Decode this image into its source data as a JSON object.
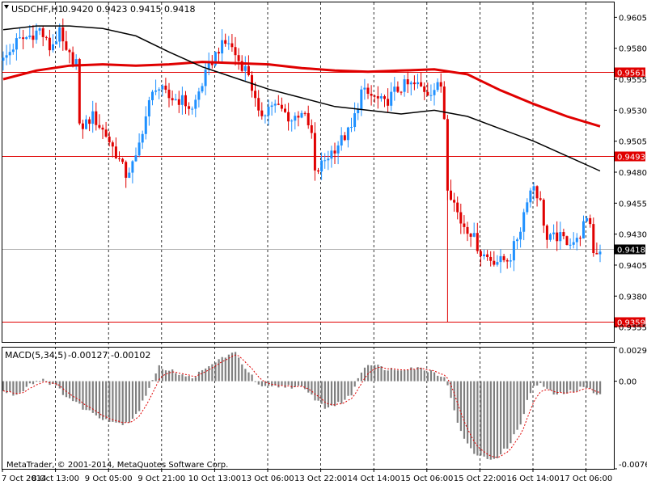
{
  "header": {
    "symbol_label": "USDCHF,H1",
    "ohlc_label": "0.9420 0.9423 0.9415 0.9418"
  },
  "macd": {
    "label": "MACD(5,34,5)",
    "values_label": "-0.00127 -0.00102",
    "scale_labels": [
      "0.00293",
      "0.00",
      "-0.00764"
    ]
  },
  "copyright": "MetaTrader, © 2001-2014, MetaQuotes Software Corp.",
  "colors": {
    "background": "#ffffff",
    "bull_candle": "#1e90ff",
    "bear_candle": "#e00000",
    "ma_fast": "#000000",
    "ma_slow": "#e00000",
    "macd_hist": "#808080",
    "macd_signal": "#e00000",
    "level_line": "#e00000",
    "bid_line": "#b0b0b0"
  },
  "chart_data": {
    "type": "candlestick",
    "symbol": "USDCHF",
    "timeframe": "H1",
    "ylim": [
      0.9343,
      0.9617
    ],
    "price_ticks": [
      0.9605,
      0.958,
      0.9555,
      0.953,
      0.9505,
      0.948,
      0.9455,
      0.943,
      0.9405,
      0.938,
      0.9355
    ],
    "x_ticks": [
      "7 Oct 2014",
      "8 Oct 13:00",
      "9 Oct 05:00",
      "9 Oct 21:00",
      "10 Oct 13:00",
      "13 Oct 06:00",
      "13 Oct 22:00",
      "14 Oct 14:00",
      "15 Oct 06:00",
      "15 Oct 22:00",
      "16 Oct 14:00",
      "17 Oct 06:00"
    ],
    "horizontal_levels": [
      {
        "label": "0.9561",
        "value": 0.9561
      },
      {
        "label": "0.9493",
        "value": 0.9493
      },
      {
        "label": "0.9359",
        "value": 0.9359
      }
    ],
    "bid": {
      "label": "0.9418",
      "value": 0.9418
    },
    "price_path": [
      [
        0,
        0.957
      ],
      [
        4,
        0.9585
      ],
      [
        8,
        0.959
      ],
      [
        11,
        0.9595
      ],
      [
        14,
        0.958
      ],
      [
        17,
        0.9592
      ],
      [
        19,
        0.9575
      ],
      [
        22,
        0.957
      ],
      [
        23,
        0.9515
      ],
      [
        27,
        0.9525
      ],
      [
        31,
        0.951
      ],
      [
        34,
        0.9495
      ],
      [
        37,
        0.9478
      ],
      [
        40,
        0.949
      ],
      [
        42,
        0.9515
      ],
      [
        44,
        0.9535
      ],
      [
        46,
        0.955
      ],
      [
        50,
        0.954
      ],
      [
        54,
        0.9538
      ],
      [
        57,
        0.953
      ],
      [
        59,
        0.9545
      ],
      [
        62,
        0.9565
      ],
      [
        65,
        0.958
      ],
      [
        68,
        0.9585
      ],
      [
        71,
        0.957
      ],
      [
        74,
        0.956
      ],
      [
        77,
        0.9525
      ],
      [
        81,
        0.9535
      ],
      [
        84,
        0.953
      ],
      [
        87,
        0.9522
      ],
      [
        90,
        0.953
      ],
      [
        93,
        0.951
      ],
      [
        94,
        0.9478
      ],
      [
        97,
        0.949
      ],
      [
        101,
        0.9503
      ],
      [
        105,
        0.9515
      ],
      [
        108,
        0.9545
      ],
      [
        112,
        0.954
      ],
      [
        115,
        0.9535
      ],
      [
        118,
        0.9545
      ],
      [
        121,
        0.955
      ],
      [
        125,
        0.955
      ],
      [
        128,
        0.9545
      ],
      [
        132,
        0.955
      ],
      [
        133,
        0.9525
      ],
      [
        134,
        0.947
      ],
      [
        138,
        0.944
      ],
      [
        141,
        0.9432
      ],
      [
        144,
        0.9415
      ],
      [
        147,
        0.941
      ],
      [
        150,
        0.9408
      ],
      [
        153,
        0.9412
      ],
      [
        156,
        0.9435
      ],
      [
        158,
        0.946
      ],
      [
        160,
        0.947
      ],
      [
        162,
        0.9455
      ],
      [
        164,
        0.9425
      ],
      [
        167,
        0.9428
      ],
      [
        170,
        0.9425
      ],
      [
        173,
        0.9424
      ],
      [
        175,
        0.9437
      ],
      [
        177,
        0.944
      ],
      [
        178,
        0.9415
      ],
      [
        180,
        0.9418
      ]
    ],
    "ma_fast": [
      [
        0,
        0.9595
      ],
      [
        10,
        0.9598
      ],
      [
        20,
        0.9598
      ],
      [
        30,
        0.9596
      ],
      [
        40,
        0.959
      ],
      [
        50,
        0.9577
      ],
      [
        60,
        0.9565
      ],
      [
        70,
        0.9556
      ],
      [
        80,
        0.9547
      ],
      [
        90,
        0.954
      ],
      [
        100,
        0.9533
      ],
      [
        110,
        0.953
      ],
      [
        120,
        0.9527
      ],
      [
        130,
        0.953
      ],
      [
        140,
        0.9525
      ],
      [
        150,
        0.9515
      ],
      [
        160,
        0.9505
      ],
      [
        170,
        0.9493
      ],
      [
        180,
        0.9481
      ]
    ],
    "ma_slow": [
      [
        0,
        0.9555
      ],
      [
        10,
        0.9562
      ],
      [
        20,
        0.9566
      ],
      [
        30,
        0.9567
      ],
      [
        40,
        0.9566
      ],
      [
        50,
        0.9567
      ],
      [
        60,
        0.9569
      ],
      [
        70,
        0.9568
      ],
      [
        80,
        0.9567
      ],
      [
        90,
        0.9564
      ],
      [
        100,
        0.9562
      ],
      [
        110,
        0.9561
      ],
      [
        120,
        0.9562
      ],
      [
        130,
        0.9563
      ],
      [
        140,
        0.9559
      ],
      [
        150,
        0.9546
      ],
      [
        160,
        0.9535
      ],
      [
        170,
        0.9525
      ],
      [
        180,
        0.9517
      ]
    ],
    "macd_ylim": [
      -0.00764,
      0.00293
    ],
    "macd_path": [
      [
        0,
        -0.0009
      ],
      [
        4,
        -0.0012
      ],
      [
        8,
        -0.0002
      ],
      [
        12,
        0.0002
      ],
      [
        15,
        -0.0003
      ],
      [
        20,
        -0.0015
      ],
      [
        25,
        -0.0025
      ],
      [
        30,
        -0.0032
      ],
      [
        35,
        -0.0037
      ],
      [
        38,
        -0.0035
      ],
      [
        41,
        -0.0025
      ],
      [
        44,
        -0.0005
      ],
      [
        47,
        0.0012
      ],
      [
        51,
        0.001
      ],
      [
        55,
        0.0003
      ],
      [
        58,
        0.0005
      ],
      [
        61,
        0.001
      ],
      [
        64,
        0.0017
      ],
      [
        67,
        0.0022
      ],
      [
        70,
        0.0024
      ],
      [
        73,
        0.0012
      ],
      [
        76,
        0.0
      ],
      [
        78,
        -0.0006
      ],
      [
        82,
        -0.0005
      ],
      [
        86,
        -0.0004
      ],
      [
        90,
        -0.0006
      ],
      [
        94,
        -0.0015
      ],
      [
        97,
        -0.0023
      ],
      [
        101,
        -0.002
      ],
      [
        105,
        -0.0012
      ],
      [
        107,
        0.0004
      ],
      [
        110,
        0.0016
      ],
      [
        114,
        0.0012
      ],
      [
        118,
        0.001
      ],
      [
        122,
        0.0012
      ],
      [
        126,
        0.0011
      ],
      [
        130,
        0.0008
      ],
      [
        133,
        0.0004
      ],
      [
        135,
        -0.0014
      ],
      [
        138,
        -0.0045
      ],
      [
        141,
        -0.006
      ],
      [
        144,
        -0.0066
      ],
      [
        147,
        -0.0068
      ],
      [
        150,
        -0.0064
      ],
      [
        153,
        -0.0054
      ],
      [
        156,
        -0.0036
      ],
      [
        158,
        -0.0018
      ],
      [
        160,
        -0.0004
      ],
      [
        162,
        -0.0002
      ],
      [
        164,
        -0.0008
      ],
      [
        167,
        -0.0012
      ],
      [
        170,
        -0.001
      ],
      [
        173,
        -0.0008
      ],
      [
        175,
        -0.0005
      ],
      [
        177,
        -0.0008
      ],
      [
        180,
        -0.0011
      ]
    ]
  }
}
